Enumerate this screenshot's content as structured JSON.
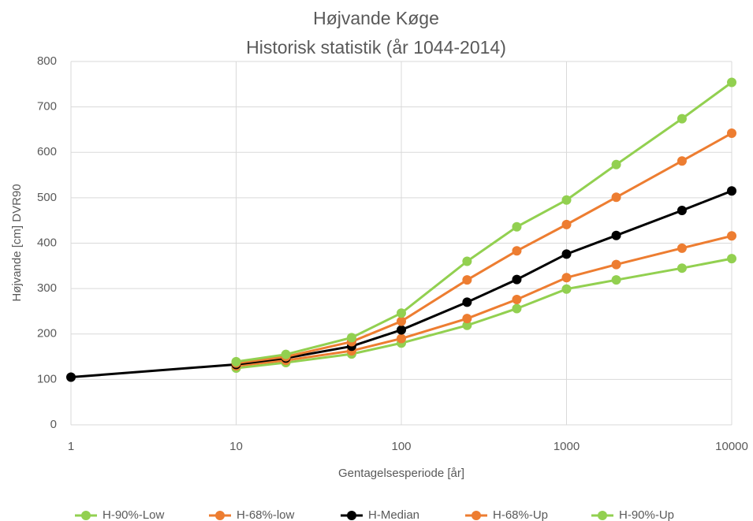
{
  "chart_data": {
    "type": "line",
    "title": "Højvande Køge",
    "subtitle": "Historisk statistik (år 1044-2014)",
    "xlabel": "Gentagelsesperiode [år]",
    "ylabel": "Højvande [cm] DVR90",
    "x": [
      1,
      10,
      20,
      50,
      100,
      250,
      500,
      1000,
      2000,
      5000,
      10000
    ],
    "xscale": "log",
    "xlim": [
      1,
      10000
    ],
    "xticks": [
      1,
      10,
      100,
      1000,
      10000
    ],
    "ylim": [
      0,
      800
    ],
    "yticks": [
      0,
      100,
      200,
      300,
      400,
      500,
      600,
      700,
      800
    ],
    "grid": true,
    "legend": "bottom",
    "series": [
      {
        "name": "H-90%-Low",
        "color": "#92d050",
        "values": [
          null,
          125,
          137,
          156,
          180,
          219,
          256,
          299,
          319,
          345,
          366
        ]
      },
      {
        "name": "H-68%-low",
        "color": "#ed7d31",
        "values": [
          null,
          130,
          142,
          163,
          190,
          234,
          276,
          324,
          353,
          389,
          416
        ]
      },
      {
        "name": "H-Median",
        "color": "#000000",
        "values": [
          105,
          133,
          147,
          173,
          209,
          270,
          320,
          376,
          417,
          472,
          515
        ]
      },
      {
        "name": "H-68%-Up",
        "color": "#ed7d31",
        "values": [
          null,
          136,
          150,
          183,
          228,
          319,
          383,
          441,
          501,
          581,
          642
        ]
      },
      {
        "name": "H-90%-Up",
        "color": "#92d050",
        "values": [
          null,
          139,
          155,
          192,
          246,
          360,
          436,
          495,
          573,
          674,
          754
        ]
      }
    ]
  }
}
